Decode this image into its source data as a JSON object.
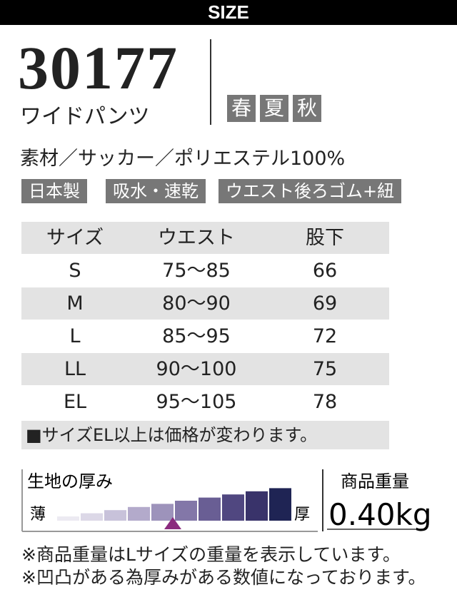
{
  "header": {
    "title": "SIZE"
  },
  "product": {
    "number": "30177",
    "name": "ワイドパンツ",
    "seasons": [
      "春",
      "夏",
      "秋"
    ]
  },
  "material": "素材／サッカー／ポリエステル100%",
  "tags": [
    "日本製",
    "吸水・速乾",
    "ウエスト後ろゴム+紐"
  ],
  "table": {
    "columns": [
      "サイズ",
      "ウエスト",
      "股下"
    ],
    "rows": [
      [
        "S",
        "75〜85",
        66
      ],
      [
        "M",
        "80〜90",
        69
      ],
      [
        "L",
        "85〜95",
        72
      ],
      [
        "LL",
        "90〜100",
        75
      ],
      [
        "EL",
        "95〜105",
        78
      ]
    ]
  },
  "note": "■サイズEL以上は価格が変わります。",
  "thickness": {
    "label": "生地の厚み",
    "thin": "薄",
    "thick": "厚"
  },
  "weight": {
    "label": "商品重量",
    "value": "0.40kg"
  },
  "footnotes": [
    "※商品重量はLサイズの重量を表示しています。",
    "※凹凸がある為厚みがある数値になっております。"
  ]
}
